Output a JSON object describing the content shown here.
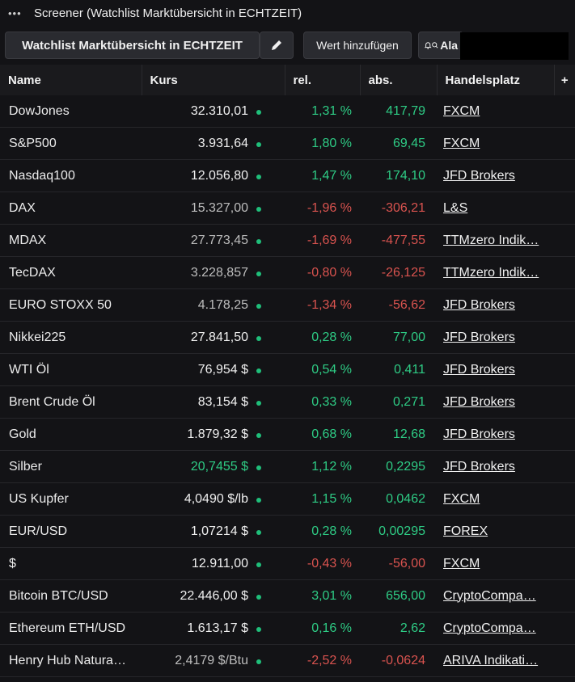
{
  "window": {
    "title": "Screener (Watchlist Marktübersicht in ECHTZEIT)"
  },
  "toolbar": {
    "watchlist_label": "Watchlist Marktübersicht in ECHTZEIT",
    "add_label": "Wert hinzufügen",
    "alarm_label": "Ala"
  },
  "table": {
    "headers": [
      "Name",
      "Kurs",
      "rel.",
      "abs.",
      "Handelsplatz",
      "+"
    ],
    "rows": [
      {
        "name": "DowJones",
        "kurs": "32.310,01",
        "kurs_style": "neu",
        "rel": "1,31 %",
        "abs": "417,79",
        "dir": "pos",
        "venue": "FXCM"
      },
      {
        "name": "S&P500",
        "kurs": "3.931,64",
        "kurs_style": "neu",
        "rel": "1,80 %",
        "abs": "69,45",
        "dir": "pos",
        "venue": "FXCM"
      },
      {
        "name": "Nasdaq100",
        "kurs": "12.056,80",
        "kurs_style": "neu",
        "rel": "1,47 %",
        "abs": "174,10",
        "dir": "pos",
        "venue": "JFD Brokers"
      },
      {
        "name": "DAX",
        "kurs": "15.327,00",
        "kurs_style": "grey",
        "rel": "-1,96 %",
        "abs": "-306,21",
        "dir": "neg",
        "venue": "L&S"
      },
      {
        "name": "MDAX",
        "kurs": "27.773,45",
        "kurs_style": "grey",
        "rel": "-1,69 %",
        "abs": "-477,55",
        "dir": "neg",
        "venue": "TTMzero Indik…"
      },
      {
        "name": "TecDAX",
        "kurs": "3.228,857",
        "kurs_style": "grey",
        "rel": "-0,80 %",
        "abs": "-26,125",
        "dir": "neg",
        "venue": "TTMzero Indik…"
      },
      {
        "name": "EURO STOXX 50",
        "kurs": "4.178,25",
        "kurs_style": "grey",
        "rel": "-1,34 %",
        "abs": "-56,62",
        "dir": "neg",
        "venue": "JFD Brokers"
      },
      {
        "name": "Nikkei225",
        "kurs": "27.841,50",
        "kurs_style": "neu",
        "rel": "0,28 %",
        "abs": "77,00",
        "dir": "pos",
        "venue": "JFD Brokers"
      },
      {
        "name": "WTI Öl",
        "kurs": "76,954 $",
        "kurs_style": "neu",
        "rel": "0,54 %",
        "abs": "0,411",
        "dir": "pos",
        "venue": "JFD Brokers"
      },
      {
        "name": "Brent Crude Öl",
        "kurs": "83,154 $",
        "kurs_style": "neu",
        "rel": "0,33 %",
        "abs": "0,271",
        "dir": "pos",
        "venue": "JFD Brokers"
      },
      {
        "name": "Gold",
        "kurs": "1.879,32 $",
        "kurs_style": "neu",
        "rel": "0,68 %",
        "abs": "12,68",
        "dir": "pos",
        "venue": "JFD Brokers"
      },
      {
        "name": "Silber",
        "kurs": "20,7455 $",
        "kurs_style": "greenval",
        "rel": "1,12 %",
        "abs": "0,2295",
        "dir": "pos",
        "venue": "JFD Brokers"
      },
      {
        "name": "US Kupfer",
        "kurs": "4,0490 $/lb",
        "kurs_style": "neu",
        "rel": "1,15 %",
        "abs": "0,0462",
        "dir": "pos",
        "venue": "FXCM"
      },
      {
        "name": "EUR/USD",
        "kurs": "1,07214 $",
        "kurs_style": "neu",
        "rel": "0,28 %",
        "abs": "0,00295",
        "dir": "pos",
        "venue": "FOREX"
      },
      {
        "name": "$",
        "kurs": "12.911,00",
        "kurs_style": "neu",
        "rel": "-0,43 %",
        "abs": "-56,00",
        "dir": "neg",
        "venue": "FXCM"
      },
      {
        "name": "Bitcoin BTC/USD",
        "kurs": "22.446,00 $",
        "kurs_style": "neu",
        "rel": "3,01 %",
        "abs": "656,00",
        "dir": "pos",
        "venue": "CryptoCompa…"
      },
      {
        "name": "Ethereum ETH/USD",
        "kurs": "1.613,17 $",
        "kurs_style": "neu",
        "rel": "0,16 %",
        "abs": "2,62",
        "dir": "pos",
        "venue": "CryptoCompa…"
      },
      {
        "name": "Henry Hub Natura…",
        "kurs": "2,4179 $/Btu",
        "kurs_style": "grey",
        "rel": "-2,52 %",
        "abs": "-0,0624",
        "dir": "neg",
        "venue": "ARIVA Indikati…"
      }
    ]
  },
  "colors": {
    "positive": "#2ecc85",
    "negative": "#d9534f",
    "background": "#131316"
  }
}
